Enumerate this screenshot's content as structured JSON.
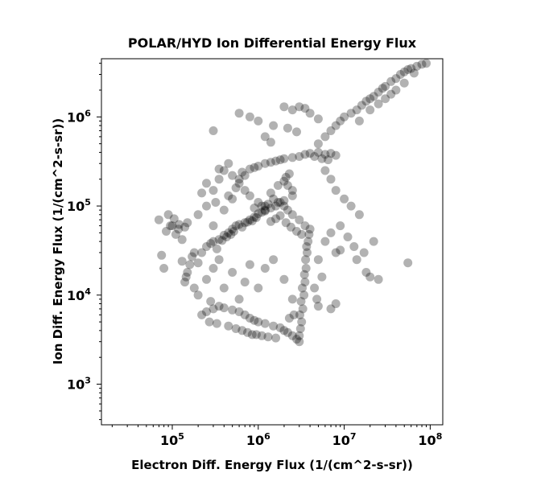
{
  "chart_data": {
    "type": "scatter",
    "title": "POLAR/HYD  Ion Differential Energy Flux",
    "xlabel": "Electron Diff. Energy Flux (1/(cm^2-s-sr))",
    "ylabel": "Ion Diff. Energy Flux (1/(cm^2-s-sr))",
    "xscale": "log",
    "yscale": "log",
    "xlim": [
      15000,
      140000000
    ],
    "ylim": [
      350,
      4500000
    ],
    "xticks": [
      {
        "value": 100000,
        "base": "10",
        "exp": "5"
      },
      {
        "value": 1000000,
        "base": "10",
        "exp": "6"
      },
      {
        "value": 10000000,
        "base": "10",
        "exp": "7"
      },
      {
        "value": 100000000,
        "base": "10",
        "exp": "8"
      }
    ],
    "yticks": [
      {
        "value": 1000,
        "base": "10",
        "exp": "3"
      },
      {
        "value": 10000,
        "base": "10",
        "exp": "4"
      },
      {
        "value": 100000,
        "base": "10",
        "exp": "5"
      },
      {
        "value": 1000000,
        "base": "10",
        "exp": "6"
      }
    ],
    "grid": false,
    "marker_color": "#000000",
    "marker_alpha": 0.3,
    "points": [
      [
        70000,
        70000
      ],
      [
        85000,
        52000
      ],
      [
        100000,
        60000
      ],
      [
        120000,
        62000
      ],
      [
        90000,
        80000
      ],
      [
        130000,
        42000
      ],
      [
        110000,
        48000
      ],
      [
        140000,
        58000
      ],
      [
        75000,
        28000
      ],
      [
        80000,
        20000
      ],
      [
        95000,
        60000
      ],
      [
        105000,
        72000
      ],
      [
        118000,
        55000
      ],
      [
        150000,
        65000
      ],
      [
        140000,
        14000
      ],
      [
        150000,
        18000
      ],
      [
        160000,
        22000
      ],
      [
        130000,
        24000
      ],
      [
        170000,
        27000
      ],
      [
        200000,
        23000
      ],
      [
        180000,
        30000
      ],
      [
        145000,
        16000
      ],
      [
        250000,
        35000
      ],
      [
        300000,
        40000
      ],
      [
        350000,
        42000
      ],
      [
        400000,
        47000
      ],
      [
        450000,
        50000
      ],
      [
        500000,
        55000
      ],
      [
        550000,
        60000
      ],
      [
        600000,
        62000
      ],
      [
        700000,
        65000
      ],
      [
        800000,
        70000
      ],
      [
        900000,
        75000
      ],
      [
        1000000,
        82000
      ],
      [
        1100000,
        85000
      ],
      [
        1200000,
        90000
      ],
      [
        1400000,
        95000
      ],
      [
        1600000,
        100000
      ],
      [
        1800000,
        110000
      ],
      [
        2000000,
        115000
      ],
      [
        2500000,
        130000
      ],
      [
        220000,
        30000
      ],
      [
        280000,
        38000
      ],
      [
        330000,
        33000
      ],
      [
        380000,
        41000
      ],
      [
        430000,
        45000
      ],
      [
        480000,
        48000
      ],
      [
        520000,
        52000
      ],
      [
        650000,
        58000
      ],
      [
        750000,
        66000
      ],
      [
        850000,
        68000
      ],
      [
        950000,
        74000
      ],
      [
        900000,
        95000
      ],
      [
        1000000,
        110000
      ],
      [
        1100000,
        100000
      ],
      [
        1200000,
        88000
      ],
      [
        1300000,
        105000
      ],
      [
        1500000,
        120000
      ],
      [
        1700000,
        110000
      ],
      [
        2000000,
        100000
      ],
      [
        2200000,
        90000
      ],
      [
        2500000,
        80000
      ],
      [
        3000000,
        70000
      ],
      [
        3500000,
        60000
      ],
      [
        4000000,
        55000
      ],
      [
        1800000,
        78000
      ],
      [
        1600000,
        72000
      ],
      [
        2100000,
        65000
      ],
      [
        2400000,
        58000
      ],
      [
        2800000,
        52000
      ],
      [
        3200000,
        48000
      ],
      [
        1400000,
        67000
      ],
      [
        1200000,
        100000
      ],
      [
        1400000,
        140000
      ],
      [
        1700000,
        170000
      ],
      [
        2000000,
        190000
      ],
      [
        2200000,
        170000
      ],
      [
        2500000,
        150000
      ],
      [
        2100000,
        210000
      ],
      [
        2300000,
        230000
      ],
      [
        600000,
        200000
      ],
      [
        700000,
        220000
      ],
      [
        800000,
        260000
      ],
      [
        900000,
        270000
      ],
      [
        1000000,
        280000
      ],
      [
        1200000,
        300000
      ],
      [
        1400000,
        310000
      ],
      [
        1600000,
        320000
      ],
      [
        1800000,
        330000
      ],
      [
        2000000,
        340000
      ],
      [
        2500000,
        350000
      ],
      [
        3000000,
        360000
      ],
      [
        3500000,
        380000
      ],
      [
        4000000,
        390000
      ],
      [
        5000000,
        400000
      ],
      [
        6000000,
        380000
      ],
      [
        7000000,
        390000
      ],
      [
        8000000,
        370000
      ],
      [
        4500000,
        360000
      ],
      [
        5500000,
        340000
      ],
      [
        6500000,
        330000
      ],
      [
        3000000,
        3500
      ],
      [
        3200000,
        5000
      ],
      [
        3300000,
        7000
      ],
      [
        3400000,
        10000
      ],
      [
        3500000,
        14000
      ],
      [
        3600000,
        20000
      ],
      [
        3700000,
        30000
      ],
      [
        3800000,
        40000
      ],
      [
        3900000,
        48000
      ],
      [
        3100000,
        4200
      ],
      [
        3050000,
        6000
      ],
      [
        3150000,
        8500
      ],
      [
        3250000,
        12000
      ],
      [
        3450000,
        17000
      ],
      [
        3550000,
        25000
      ],
      [
        3650000,
        35000
      ],
      [
        220000,
        6000
      ],
      [
        250000,
        6500
      ],
      [
        300000,
        7000
      ],
      [
        350000,
        7500
      ],
      [
        400000,
        7200
      ],
      [
        500000,
        6800
      ],
      [
        600000,
        6500
      ],
      [
        700000,
        6000
      ],
      [
        800000,
        5500
      ],
      [
        900000,
        5200
      ],
      [
        1000000,
        5000
      ],
      [
        1200000,
        4800
      ],
      [
        1500000,
        4500
      ],
      [
        1800000,
        4300
      ],
      [
        2000000,
        4000
      ],
      [
        2200000,
        3800
      ],
      [
        2500000,
        3500
      ],
      [
        2800000,
        3200
      ],
      [
        3000000,
        3000
      ],
      [
        450000,
        4500
      ],
      [
        550000,
        4200
      ],
      [
        650000,
        4000
      ],
      [
        750000,
        3800
      ],
      [
        850000,
        3600
      ],
      [
        950000,
        3600
      ],
      [
        1100000,
        3500
      ],
      [
        1300000,
        3400
      ],
      [
        1600000,
        3300
      ],
      [
        2300000,
        5500
      ],
      [
        2600000,
        6000
      ],
      [
        270000,
        5000
      ],
      [
        330000,
        4800
      ],
      [
        5000000,
        500000
      ],
      [
        6000000,
        600000
      ],
      [
        7000000,
        700000
      ],
      [
        8000000,
        800000
      ],
      [
        9000000,
        900000
      ],
      [
        10000000,
        1000000
      ],
      [
        12000000,
        1100000
      ],
      [
        14000000,
        1200000
      ],
      [
        16000000,
        1350000
      ],
      [
        18000000,
        1500000
      ],
      [
        20000000,
        1600000
      ],
      [
        22000000,
        1700000
      ],
      [
        25000000,
        1900000
      ],
      [
        28000000,
        2100000
      ],
      [
        30000000,
        2200000
      ],
      [
        35000000,
        2500000
      ],
      [
        40000000,
        2700000
      ],
      [
        45000000,
        3000000
      ],
      [
        50000000,
        3200000
      ],
      [
        55000000,
        3400000
      ],
      [
        60000000,
        3500000
      ],
      [
        70000000,
        3700000
      ],
      [
        80000000,
        3900000
      ],
      [
        90000000,
        4000000
      ],
      [
        15000000,
        900000
      ],
      [
        20000000,
        1200000
      ],
      [
        25000000,
        1400000
      ],
      [
        30000000,
        1600000
      ],
      [
        35000000,
        1800000
      ],
      [
        40000000,
        2000000
      ],
      [
        50000000,
        2400000
      ],
      [
        65000000,
        3100000
      ],
      [
        300000,
        700000
      ],
      [
        600000,
        1100000
      ],
      [
        800000,
        1000000
      ],
      [
        1000000,
        900000
      ],
      [
        1200000,
        600000
      ],
      [
        1500000,
        800000
      ],
      [
        2000000,
        1300000
      ],
      [
        2500000,
        1200000
      ],
      [
        3000000,
        1300000
      ],
      [
        3500000,
        1250000
      ],
      [
        4000000,
        1100000
      ],
      [
        5000000,
        950000
      ],
      [
        1400000,
        520000
      ],
      [
        2200000,
        750000
      ],
      [
        2800000,
        680000
      ],
      [
        6000000,
        250000
      ],
      [
        7000000,
        200000
      ],
      [
        8000000,
        150000
      ],
      [
        10000000,
        120000
      ],
      [
        12000000,
        100000
      ],
      [
        15000000,
        80000
      ],
      [
        9000000,
        60000
      ],
      [
        7000000,
        50000
      ],
      [
        11000000,
        45000
      ],
      [
        13000000,
        35000
      ],
      [
        6000000,
        40000
      ],
      [
        8000000,
        30000
      ],
      [
        5000000,
        25000
      ],
      [
        9000000,
        32000
      ],
      [
        14000000,
        25000
      ],
      [
        18000000,
        18000
      ],
      [
        20000000,
        16000
      ],
      [
        25000000,
        15000
      ],
      [
        55000000,
        23000
      ],
      [
        17000000,
        30000
      ],
      [
        22000000,
        40000
      ],
      [
        5000000,
        7500
      ],
      [
        7000000,
        7000
      ],
      [
        8000000,
        8000
      ],
      [
        4500000,
        12000
      ],
      [
        5500000,
        16000
      ],
      [
        4800000,
        9000
      ],
      [
        200000,
        10000
      ],
      [
        250000,
        15000
      ],
      [
        300000,
        20000
      ],
      [
        350000,
        25000
      ],
      [
        400000,
        12000
      ],
      [
        500000,
        18000
      ],
      [
        600000,
        9000
      ],
      [
        700000,
        14000
      ],
      [
        800000,
        22000
      ],
      [
        1000000,
        12000
      ],
      [
        1200000,
        20000
      ],
      [
        1500000,
        25000
      ],
      [
        2000000,
        15000
      ],
      [
        2500000,
        9000
      ],
      [
        180000,
        12000
      ],
      [
        280000,
        8500
      ],
      [
        250000,
        100000
      ],
      [
        300000,
        150000
      ],
      [
        350000,
        200000
      ],
      [
        400000,
        250000
      ],
      [
        500000,
        120000
      ],
      [
        600000,
        180000
      ],
      [
        200000,
        80000
      ],
      [
        300000,
        60000
      ],
      [
        400000,
        90000
      ],
      [
        450000,
        130000
      ],
      [
        550000,
        160000
      ],
      [
        700000,
        150000
      ],
      [
        800000,
        130000
      ],
      [
        250000,
        180000
      ],
      [
        350000,
        260000
      ],
      [
        450000,
        300000
      ],
      [
        500000,
        220000
      ],
      [
        650000,
        240000
      ],
      [
        220000,
        140000
      ],
      [
        320000,
        110000
      ]
    ]
  }
}
